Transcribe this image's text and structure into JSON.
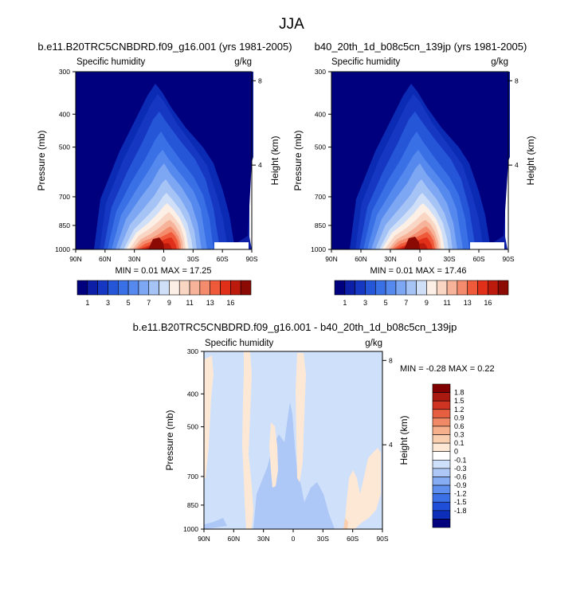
{
  "title": "JJA",
  "colors": {
    "abs_scale": [
      "#00007f",
      "#0c1fa6",
      "#1637c2",
      "#2656d8",
      "#3a70e6",
      "#5689ee",
      "#7ea7f3",
      "#a6c3f6",
      "#cfdff8",
      "#fbefe6",
      "#f9d5c3",
      "#f7b39a",
      "#f48b6c",
      "#ef5a3b",
      "#e0301a",
      "#bd1a0e",
      "#8c0a04"
    ],
    "diff_scale": [
      "#00007f",
      "#0c2eb8",
      "#1f4ed8",
      "#3b6fe6",
      "#5f8fee",
      "#86adf3",
      "#adc8f6",
      "#cfe0fa",
      "#ffffff",
      "#fde8d6",
      "#f9cfb0",
      "#f6b08c",
      "#f08a66",
      "#e55f40",
      "#cf3422",
      "#aa1a10",
      "#800000"
    ]
  },
  "chart_data": [
    {
      "type": "heatmap",
      "title": "b.e11.B20TRC5CNBDRD.f09_g16.001 (yrs 1981-2005)",
      "subtitle_left": "Specific humidity",
      "subtitle_right": "g/kg",
      "ylabel": "Pressure (mb)",
      "ylabel_right": "Height (km)",
      "y_ticks": [
        "300",
        "400",
        "500",
        "700",
        "850",
        "1000"
      ],
      "y_tick_values": [
        300,
        400,
        500,
        700,
        850,
        1000
      ],
      "height_ticks": [
        "8",
        "4"
      ],
      "height_tick_values": [
        8,
        4
      ],
      "x_ticks": [
        "90N",
        "60N",
        "30N",
        "0",
        "30S",
        "60S",
        "90S"
      ],
      "x_tick_values": [
        90,
        60,
        30,
        0,
        -30,
        -60,
        -90
      ],
      "ylim": [
        1000,
        300
      ],
      "xlim": [
        90,
        -90
      ],
      "stats": "MIN =  0.01  MAX = 17.25",
      "colorbar_labels": [
        "1",
        "3",
        "5",
        "7",
        "9",
        "11",
        "13",
        "16"
      ],
      "colorbar_levels": [
        0.5,
        1,
        2,
        3,
        4,
        5,
        6,
        7,
        8,
        9,
        10,
        11,
        12,
        13,
        14,
        16
      ]
    },
    {
      "type": "heatmap",
      "title": "b40_20th_1d_b08c5cn_139jp (yrs 1981-2005)",
      "subtitle_left": "Specific humidity",
      "subtitle_right": "g/kg",
      "ylabel": "Pressure (mb)",
      "ylabel_right": "Height (km)",
      "y_ticks": [
        "300",
        "400",
        "500",
        "700",
        "850",
        "1000"
      ],
      "y_tick_values": [
        300,
        400,
        500,
        700,
        850,
        1000
      ],
      "height_ticks": [
        "8",
        "4"
      ],
      "height_tick_values": [
        8,
        4
      ],
      "x_ticks": [
        "90N",
        "60N",
        "30N",
        "0",
        "30S",
        "60S",
        "90S"
      ],
      "x_tick_values": [
        90,
        60,
        30,
        0,
        -30,
        -60,
        -90
      ],
      "ylim": [
        1000,
        300
      ],
      "xlim": [
        90,
        -90
      ],
      "stats": "MIN =  0.01  MAX = 17.46",
      "colorbar_labels": [
        "1",
        "3",
        "5",
        "7",
        "9",
        "11",
        "13",
        "16"
      ],
      "colorbar_levels": [
        0.5,
        1,
        2,
        3,
        4,
        5,
        6,
        7,
        8,
        9,
        10,
        11,
        12,
        13,
        14,
        16
      ]
    },
    {
      "type": "heatmap",
      "title": "b.e11.B20TRC5CNBDRD.f09_g16.001 - b40_20th_1d_b08c5cn_139jp",
      "subtitle_left": "Specific humidity",
      "subtitle_right": "g/kg",
      "ylabel": "Pressure (mb)",
      "ylabel_right": "Height (km)",
      "y_ticks": [
        "300",
        "400",
        "500",
        "700",
        "850",
        "1000"
      ],
      "y_tick_values": [
        300,
        400,
        500,
        700,
        850,
        1000
      ],
      "height_ticks": [
        "8",
        "4"
      ],
      "height_tick_values": [
        8,
        4
      ],
      "x_ticks": [
        "90N",
        "60N",
        "30N",
        "0",
        "30S",
        "60S",
        "90S"
      ],
      "x_tick_values": [
        90,
        60,
        30,
        0,
        -30,
        -60,
        -90
      ],
      "ylim": [
        1000,
        300
      ],
      "xlim": [
        90,
        -90
      ],
      "stats": "MIN = -0.28  MAX =  0.22",
      "colorbar_labels": [
        "1.8",
        "1.5",
        "1.2",
        "0.9",
        "0.6",
        "0.3",
        "0.1",
        "0",
        "-0.1",
        "-0.3",
        "-0.6",
        "-0.9",
        "-1.2",
        "-1.5",
        "-1.8"
      ]
    }
  ]
}
